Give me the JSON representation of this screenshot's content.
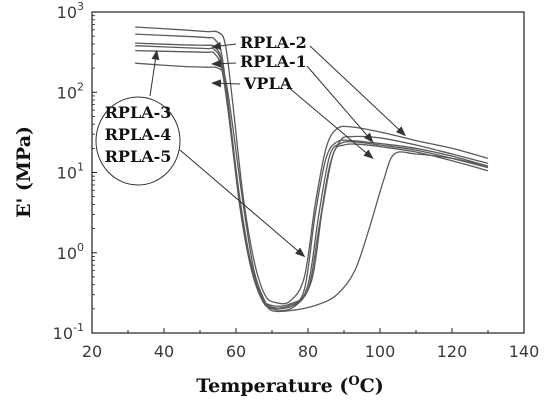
{
  "chart_data": {
    "type": "line",
    "xlabel": {
      "text": "Temperature (",
      "sup": "O",
      "tail": "C)"
    },
    "ylabel": "E' (MPa)",
    "xlim": [
      20,
      140
    ],
    "ylim": [
      0.1,
      1000
    ],
    "yscale": "log",
    "xticks": [
      20,
      40,
      60,
      80,
      100,
      120,
      140
    ],
    "yticks": [
      {
        "value": 0.1,
        "base": "10",
        "exp": "-1"
      },
      {
        "value": 1,
        "base": "10",
        "exp": "0"
      },
      {
        "value": 10,
        "base": "10",
        "exp": "1"
      },
      {
        "value": 100,
        "base": "10",
        "exp": "2"
      },
      {
        "value": 1000,
        "base": "10",
        "exp": "3"
      }
    ],
    "grid": false,
    "series": [
      {
        "name": "RPLA-2",
        "color": "#5a5a5a",
        "points": [
          [
            32,
            650
          ],
          [
            45,
            600
          ],
          [
            52,
            570
          ],
          [
            55,
            560
          ],
          [
            57,
            400
          ],
          [
            59,
            80
          ],
          [
            62,
            5
          ],
          [
            65,
            0.8
          ],
          [
            68,
            0.3
          ],
          [
            71,
            0.24
          ],
          [
            75,
            0.25
          ],
          [
            79,
            0.5
          ],
          [
            82,
            4
          ],
          [
            85,
            20
          ],
          [
            88,
            35
          ],
          [
            92,
            37
          ],
          [
            100,
            32
          ],
          [
            110,
            25
          ],
          [
            120,
            20
          ],
          [
            130,
            15
          ]
        ]
      },
      {
        "name": "RPLA-1",
        "color": "#5a5a5a",
        "points": [
          [
            32,
            530
          ],
          [
            45,
            500
          ],
          [
            52,
            480
          ],
          [
            54,
            460
          ],
          [
            56,
            300
          ],
          [
            58,
            60
          ],
          [
            61,
            4
          ],
          [
            64,
            0.7
          ],
          [
            67,
            0.28
          ],
          [
            70,
            0.22
          ],
          [
            75,
            0.23
          ],
          [
            80,
            0.35
          ],
          [
            83,
            2
          ],
          [
            86,
            12
          ],
          [
            89,
            25
          ],
          [
            92,
            28
          ],
          [
            100,
            27
          ],
          [
            110,
            22
          ],
          [
            120,
            17
          ],
          [
            130,
            13
          ]
        ]
      },
      {
        "name": "VPLA",
        "color": "#5a5a5a",
        "points": [
          [
            32,
            230
          ],
          [
            45,
            210
          ],
          [
            52,
            205
          ],
          [
            55,
            200
          ],
          [
            57,
            150
          ],
          [
            59,
            40
          ],
          [
            62,
            4
          ],
          [
            65,
            0.6
          ],
          [
            68,
            0.25
          ],
          [
            70,
            0.19
          ],
          [
            75,
            0.19
          ],
          [
            82,
            0.22
          ],
          [
            88,
            0.3
          ],
          [
            93,
            0.6
          ],
          [
            97,
            2
          ],
          [
            101,
            8
          ],
          [
            104,
            17
          ],
          [
            110,
            17
          ],
          [
            120,
            15
          ],
          [
            130,
            12
          ]
        ]
      },
      {
        "name": "RPLA-3",
        "color": "#5a5a5a",
        "points": [
          [
            32,
            410
          ],
          [
            45,
            390
          ],
          [
            52,
            385
          ],
          [
            54,
            370
          ],
          [
            56,
            250
          ],
          [
            58,
            60
          ],
          [
            61,
            5
          ],
          [
            64,
            0.8
          ],
          [
            67,
            0.3
          ],
          [
            69,
            0.21
          ],
          [
            75,
            0.22
          ],
          [
            79,
            0.35
          ],
          [
            82,
            3
          ],
          [
            85,
            15
          ],
          [
            88,
            24
          ],
          [
            92,
            25
          ],
          [
            100,
            23
          ],
          [
            110,
            20
          ],
          [
            120,
            16
          ],
          [
            130,
            12
          ]
        ]
      },
      {
        "name": "RPLA-4",
        "color": "#5a5a5a",
        "points": [
          [
            32,
            380
          ],
          [
            45,
            360
          ],
          [
            52,
            350
          ],
          [
            54,
            340
          ],
          [
            56,
            230
          ],
          [
            58,
            55
          ],
          [
            61,
            4.5
          ],
          [
            64,
            0.75
          ],
          [
            67,
            0.29
          ],
          [
            70,
            0.21
          ],
          [
            76,
            0.22
          ],
          [
            80,
            0.4
          ],
          [
            83,
            3
          ],
          [
            86,
            16
          ],
          [
            89,
            23
          ],
          [
            93,
            24
          ],
          [
            100,
            22
          ],
          [
            110,
            19
          ],
          [
            120,
            15
          ],
          [
            130,
            11.5
          ]
        ]
      },
      {
        "name": "RPLA-5",
        "color": "#5a5a5a",
        "points": [
          [
            32,
            330
          ],
          [
            45,
            320
          ],
          [
            52,
            315
          ],
          [
            54,
            305
          ],
          [
            56,
            200
          ],
          [
            58,
            50
          ],
          [
            61,
            4
          ],
          [
            64,
            0.7
          ],
          [
            67,
            0.27
          ],
          [
            70,
            0.2
          ],
          [
            76,
            0.21
          ],
          [
            81,
            0.45
          ],
          [
            84,
            3.5
          ],
          [
            87,
            17
          ],
          [
            90,
            22
          ],
          [
            94,
            22.5
          ],
          [
            100,
            21
          ],
          [
            110,
            18
          ],
          [
            120,
            14
          ],
          [
            130,
            10.5
          ]
        ]
      }
    ],
    "annotations": [
      {
        "label": "RPLA-2",
        "arrow_to": [
          107,
          29
        ]
      },
      {
        "label": "RPLA-1",
        "arrow_to": [
          98,
          24
        ]
      },
      {
        "label": "VPLA",
        "arrow_to": [
          98,
          15
        ]
      }
    ],
    "group_annotation": {
      "labels": [
        "RPLA-3",
        "RPLA-4",
        "RPLA-5"
      ],
      "arrows_to": [
        [
          38,
          330
        ],
        [
          79,
          0.9
        ]
      ]
    }
  }
}
